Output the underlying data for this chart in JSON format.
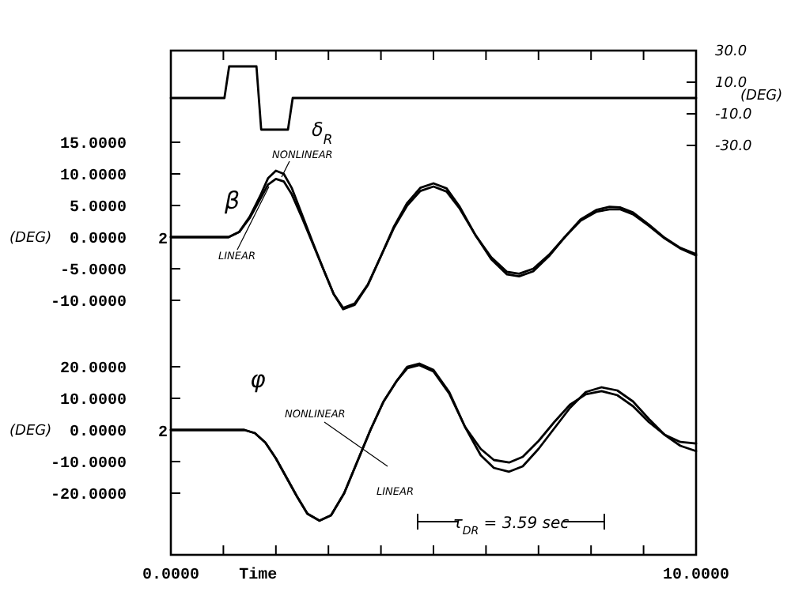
{
  "chart_data": {
    "type": "line",
    "xlabel": "Time",
    "ylabel": "(DEG)",
    "y2label": "(DEG)",
    "y3label": "(DEG)",
    "xlim": [
      0,
      10
    ],
    "xticks": [
      {
        "value": 0,
        "label": "0.0000"
      },
      {
        "value": 1,
        "label": null
      },
      {
        "value": 2,
        "label": null
      },
      {
        "value": 3,
        "label": null
      },
      {
        "value": 4,
        "label": null
      },
      {
        "value": 5,
        "label": null
      },
      {
        "value": 6,
        "label": null
      },
      {
        "value": 7,
        "label": null
      },
      {
        "value": 8,
        "label": null
      },
      {
        "value": 9,
        "label": null
      },
      {
        "value": 10,
        "label": "10.0000"
      }
    ],
    "ylim": [
      -50.25,
      29.5
    ],
    "yticks": [
      {
        "value": 15,
        "label": "15.0000"
      },
      {
        "value": 10,
        "label": "10.0000"
      },
      {
        "value": 5,
        "label": "5.0000"
      },
      {
        "value": 0,
        "label": "0.0000"
      },
      {
        "value": -5,
        "label": "-5.0000"
      },
      {
        "value": -10,
        "label": "-10.0000"
      }
    ],
    "y2lim": [
      -289,
      30
    ],
    "y2ticks": [
      {
        "value": 30,
        "label": "30.0"
      },
      {
        "value": 10,
        "label": "10.0"
      },
      {
        "value": -10,
        "label": "-10.0"
      },
      {
        "value": -30,
        "label": "-30.0"
      }
    ],
    "y3lim": [
      -39.5,
      120
    ],
    "y3ticks": [
      {
        "value": 20,
        "label": "20.0000"
      },
      {
        "value": 10,
        "label": "10.0000"
      },
      {
        "value": 0,
        "label": "0.0000"
      },
      {
        "value": -10,
        "label": "-10.0000"
      },
      {
        "value": -20,
        "label": "-20.0000"
      }
    ],
    "series": [
      {
        "axis": "y2",
        "color": "#000000",
        "x": [
          0,
          1.02,
          1.11,
          1.63,
          1.72,
          2.23,
          2.32,
          10
        ],
        "values": [
          0,
          0,
          20,
          20,
          -20,
          -20,
          0,
          0
        ]
      },
      {
        "name": "NONLINEAR",
        "axis": "y",
        "color": "#000000",
        "x": [
          0,
          1.1,
          1.3,
          1.5,
          1.7,
          1.85,
          2.0,
          2.15,
          2.3,
          2.5,
          2.7,
          2.9,
          3.1,
          3.28,
          3.5,
          3.75,
          4.0,
          4.25,
          4.5,
          4.75,
          5.0,
          5.25,
          5.5,
          5.8,
          6.1,
          6.4,
          6.63,
          6.9,
          7.2,
          7.5,
          7.8,
          8.1,
          8.35,
          8.55,
          8.8,
          9.1,
          9.4,
          9.7,
          10
        ],
        "values": [
          0,
          0,
          0.8,
          3.2,
          6.5,
          9.3,
          10.5,
          10,
          7.8,
          3.5,
          -0.8,
          -5,
          -9,
          -11.4,
          -10.7,
          -7.6,
          -3,
          1.7,
          5.4,
          7.8,
          8.5,
          7.7,
          4.8,
          0.3,
          -3.5,
          -5.9,
          -6.2,
          -5.4,
          -3,
          0,
          2.8,
          4.3,
          4.8,
          4.7,
          3.9,
          2,
          -0.1,
          -1.7,
          -2.7
        ]
      },
      {
        "name": "LINEAR",
        "axis": "y",
        "color": "#000000",
        "x": [
          0,
          1.1,
          1.3,
          1.5,
          1.7,
          1.85,
          2.0,
          2.15,
          2.3,
          2.5,
          2.7,
          2.9,
          3.1,
          3.28,
          3.5,
          3.75,
          4.0,
          4.25,
          4.5,
          4.75,
          5.0,
          5.25,
          5.5,
          5.8,
          6.1,
          6.4,
          6.63,
          6.9,
          7.2,
          7.5,
          7.8,
          8.1,
          8.35,
          8.55,
          8.8,
          9.1,
          9.4,
          9.7,
          10
        ],
        "values": [
          0,
          0,
          0.8,
          3,
          6,
          8.3,
          9.2,
          8.8,
          6.8,
          3,
          -1,
          -5,
          -9,
          -11.2,
          -10.5,
          -7.5,
          -3,
          1.5,
          5,
          7.3,
          8,
          7.2,
          4.5,
          0.3,
          -3.2,
          -5.5,
          -5.8,
          -5,
          -2.8,
          0,
          2.6,
          4,
          4.4,
          4.4,
          3.6,
          1.8,
          -0.2,
          -1.8,
          -2.9
        ]
      },
      {
        "name": "NONLINEAR",
        "axis": "y3",
        "color": "#000000",
        "x": [
          0,
          1.4,
          1.6,
          1.8,
          2.0,
          2.2,
          2.4,
          2.6,
          2.83,
          3.05,
          3.3,
          3.55,
          3.8,
          4.05,
          4.3,
          4.5,
          4.73,
          5.0,
          5.3,
          5.6,
          5.9,
          6.15,
          6.44,
          6.7,
          7.0,
          7.3,
          7.6,
          7.9,
          8.2,
          8.5,
          8.8,
          9.1,
          9.4,
          9.7,
          10
        ],
        "values": [
          0,
          0,
          -1,
          -4,
          -9,
          -15,
          -21,
          -26.5,
          -28.7,
          -27,
          -20,
          -10,
          0,
          9,
          15.5,
          20,
          21,
          19,
          12,
          1,
          -8,
          -12,
          -13.2,
          -11.5,
          -6,
          0.5,
          7,
          12,
          13.5,
          12.5,
          9,
          3.5,
          -1.5,
          -5,
          -6.7
        ]
      },
      {
        "name": "LINEAR",
        "axis": "y3",
        "color": "#000000",
        "x": [
          0,
          1.4,
          1.6,
          1.8,
          2.0,
          2.2,
          2.4,
          2.6,
          2.83,
          3.05,
          3.3,
          3.55,
          3.8,
          4.05,
          4.3,
          4.5,
          4.73,
          5.0,
          5.3,
          5.6,
          5.9,
          6.15,
          6.44,
          6.7,
          7.0,
          7.3,
          7.6,
          7.9,
          8.2,
          8.5,
          8.8,
          9.1,
          9.4,
          9.7,
          10
        ],
        "values": [
          0,
          0,
          -1,
          -4,
          -9,
          -15,
          -21,
          -26.5,
          -28.7,
          -27,
          -20,
          -10,
          0,
          9,
          15.5,
          19.5,
          20.5,
          18.5,
          11.5,
          1,
          -6,
          -9.5,
          -10.3,
          -8.5,
          -3.5,
          2.5,
          8,
          11.3,
          12.3,
          11,
          7.5,
          2.5,
          -1.5,
          -3.8,
          -4.3
        ]
      }
    ],
    "annotations": [
      "δ$_{R}$",
      "β",
      "φ",
      "τ$_{DR}$ = 3.59 sec",
      "2",
      "2"
    ]
  }
}
